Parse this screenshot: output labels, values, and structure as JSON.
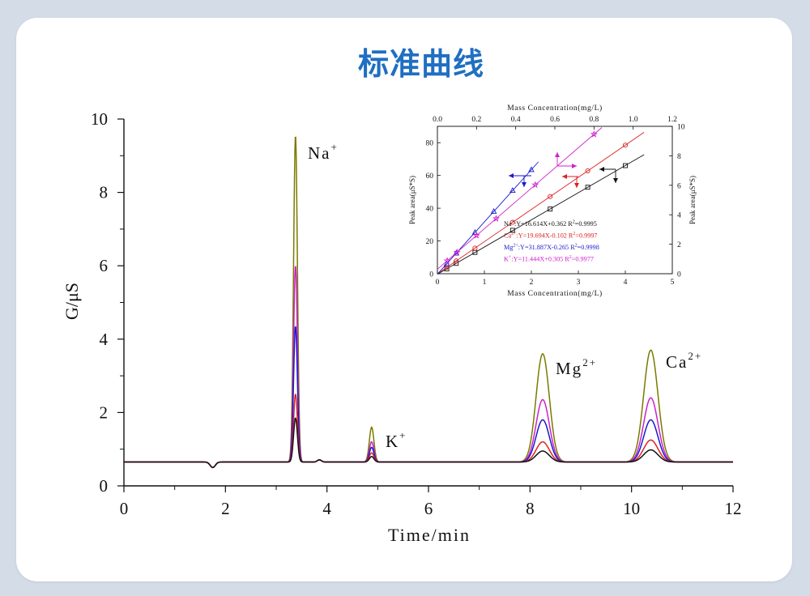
{
  "page": {
    "title": "标准曲线"
  },
  "chart_data": [
    {
      "type": "line",
      "title": "",
      "xlabel": "Time/min",
      "ylabel": "G/μS",
      "xlim": [
        0,
        12
      ],
      "ylim": [
        0,
        10
      ],
      "xticks": [
        0,
        2,
        4,
        6,
        8,
        10,
        12
      ],
      "yticks": [
        0,
        2,
        4,
        6,
        8,
        10
      ],
      "baseline": 0.65,
      "dip": {
        "x": 1.75,
        "y": 0.5
      },
      "peak_positions": {
        "Na+": 3.38,
        "K+": 4.88,
        "Mg2+": 8.25,
        "Ca2+": 10.38
      },
      "peak_labels": [
        {
          "base": "Na",
          "sup": "+"
        },
        {
          "base": "K",
          "sup": "+"
        },
        {
          "base": "Mg",
          "sup": "2+"
        },
        {
          "base": "Ca",
          "sup": "2+"
        }
      ],
      "series": [
        {
          "color": "#7a7a00",
          "peaks": {
            "Na+": 9.55,
            "K+": 1.6,
            "Mg2+": 3.6,
            "Ca2+": 3.7
          }
        },
        {
          "color": "#cc22cc",
          "peaks": {
            "Na+": 6.0,
            "K+": 1.2,
            "Mg2+": 2.35,
            "Ca2+": 2.4
          }
        },
        {
          "color": "#1a1acc",
          "peaks": {
            "Na+": 4.35,
            "K+": 1.05,
            "Mg2+": 1.8,
            "Ca2+": 1.8
          }
        },
        {
          "color": "#dd2222",
          "peaks": {
            "Na+": 2.5,
            "K+": 0.9,
            "Mg2+": 1.2,
            "Ca2+": 1.25
          }
        },
        {
          "color": "#111111",
          "peaks": {
            "Na+": 1.85,
            "K+": 0.8,
            "Mg2+": 0.95,
            "Ca2+": 0.98
          }
        }
      ]
    },
    {
      "type": "scatter",
      "title": "",
      "xlabel": "Mass Concentration(mg/L)",
      "x2label": "Mass Concentration(mg/L)",
      "ylabel": "Peak area(μS*S)",
      "y2label": "Peak area(μS*S)",
      "xlim": [
        0,
        5
      ],
      "ylim": [
        0,
        90
      ],
      "x2lim": [
        0,
        1.2
      ],
      "y2lim": [
        0,
        10
      ],
      "xticks": [
        "0",
        "1",
        "2",
        "3",
        "4",
        "5"
      ],
      "yticks": [
        "0",
        "20",
        "40",
        "60",
        "80"
      ],
      "x2ticks": [
        "0.0",
        "0.2",
        "0.4",
        "0.6",
        "0.8",
        "1.0",
        "1.2"
      ],
      "y2ticks": [
        "0",
        "2",
        "4",
        "6",
        "8",
        "10"
      ],
      "series": [
        {
          "ion": "Na",
          "charge": "+",
          "color": "#111111",
          "marker": "square",
          "axis": "bottom-left",
          "x": [
            0.2,
            0.4,
            0.8,
            1.6,
            2.4,
            3.2,
            4.0
          ],
          "y": [
            2.9,
            6.3,
            13.0,
            26.5,
            39.5,
            52.8,
            66.0
          ],
          "fit": [
            0,
            4.4
          ],
          "equation": ":Y=16.614X+0.362  R",
          "r2": "=0.9995"
        },
        {
          "ion": "Ca",
          "charge": "2+",
          "color": "#dd2222",
          "marker": "circle",
          "axis": "bottom-left",
          "x": [
            0.2,
            0.4,
            0.8,
            1.6,
            2.4,
            3.2,
            4.0
          ],
          "y": [
            3.9,
            7.8,
            15.6,
            31.4,
            47.1,
            62.8,
            78.5
          ],
          "fit": [
            0,
            4.4
          ],
          "equation": ":Y=19.694X-0.102  R",
          "r2": "=0.9997"
        },
        {
          "ion": "Mg",
          "charge": "2+",
          "color": "#1a1acc",
          "marker": "triangle",
          "axis": "bottom-left",
          "x": [
            0.2,
            0.4,
            0.8,
            1.2,
            1.6,
            2.0
          ],
          "y": [
            6.1,
            12.5,
            25.2,
            38.0,
            50.8,
            63.5
          ],
          "fit": [
            0,
            2.15
          ],
          "equation": ":Y=31.887X-0.265  R",
          "r2": "=0.9998"
        },
        {
          "ion": "K",
          "charge": "+",
          "color": "#cc22cc",
          "marker": "star",
          "axis": "top-right",
          "x": [
            0.05,
            0.1,
            0.2,
            0.3,
            0.5,
            0.8
          ],
          "y": [
            0.88,
            1.45,
            2.59,
            3.74,
            6.03,
            9.46
          ],
          "fit": [
            0,
            0.84
          ],
          "equation": ":Y=11.444X+0.305  R",
          "r2": "=0.9977"
        }
      ]
    }
  ]
}
